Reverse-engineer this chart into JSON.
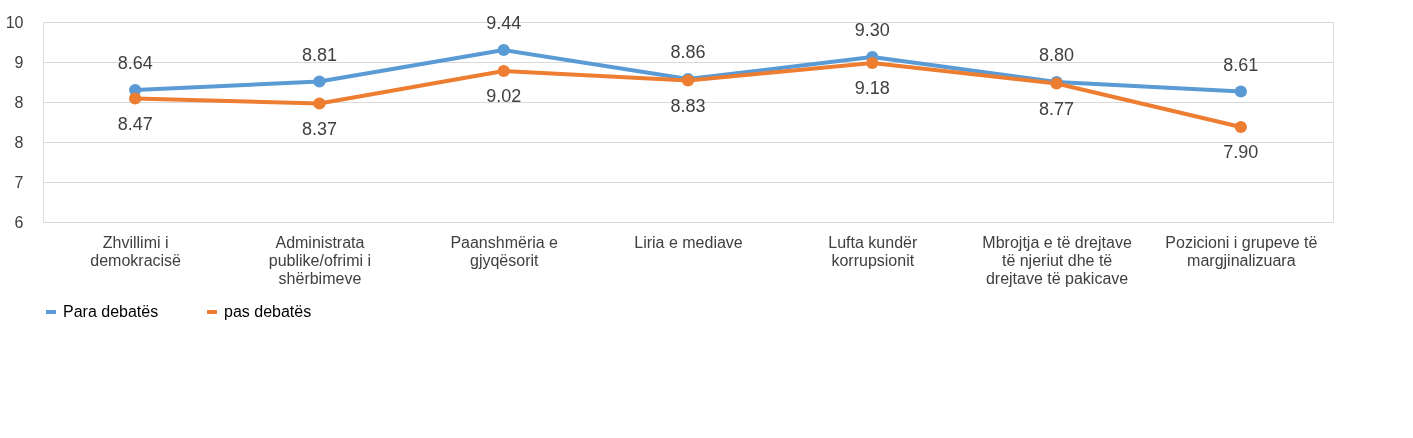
{
  "chart_data": {
    "type": "line",
    "categories": [
      "Zhvillimi i demokracisë",
      "Administrata publike/ofrimi i shërbimeve",
      "Paanshmëria e gjyqësorit",
      "Liria e mediave",
      "Lufta kundër korrupsionit",
      "Mbrojtja e të drejtave të njeriut dhe të drejtave të pakicave",
      "Pozicioni i grupeve të margjinalizuara"
    ],
    "series": [
      {
        "name": "Para debatës",
        "color": "#5b9bd5",
        "values": [
          8.64,
          8.81,
          9.44,
          8.86,
          9.3,
          8.8,
          8.61
        ],
        "value_labels": [
          "8.64",
          "8.81",
          "9.44",
          "8.86",
          "9.30",
          "8.80",
          "8.61"
        ]
      },
      {
        "name": "pas debatës",
        "color": "#ed7d31",
        "values": [
          8.47,
          8.37,
          9.02,
          8.83,
          9.18,
          8.77,
          7.9
        ],
        "value_labels": [
          "8.47",
          "8.37",
          "9.02",
          "8.83",
          "9.18",
          "8.77",
          "7.90"
        ]
      }
    ],
    "ylim": [
      6,
      10
    ],
    "yticks": [
      {
        "value": 6,
        "label": "6"
      },
      {
        "value": 6.8,
        "label": "7"
      },
      {
        "value": 7.6,
        "label": "8"
      },
      {
        "value": 8.4,
        "label": "8"
      },
      {
        "value": 9.2,
        "label": "9"
      },
      {
        "value": 10,
        "label": "10"
      }
    ],
    "data_labels": true,
    "grid": "y",
    "legend": "bottom",
    "marker": "circle",
    "line_style": "solid"
  }
}
